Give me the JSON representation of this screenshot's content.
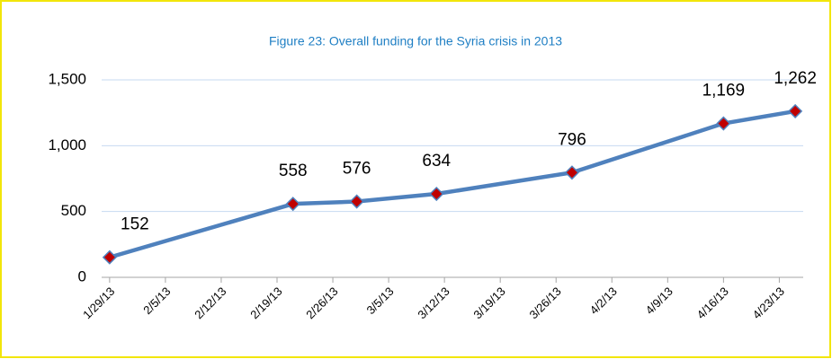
{
  "chart_data": {
    "type": "line",
    "title": "Figure 23: Overall funding for the Syria crisis in 2013",
    "x": [
      "1/29/13",
      "2/21/13",
      "3/1/13",
      "3/11/13",
      "3/28/13",
      "4/16/13",
      "4/25/13"
    ],
    "series": [
      {
        "name": "Overall funding",
        "color": "#4f81bd",
        "marker_color": "#c00000",
        "values": [
          152,
          558,
          576,
          634,
          796,
          1169,
          1262
        ],
        "value_labels": [
          "152",
          "558",
          "576",
          "634",
          "796",
          "1,169",
          "1,262"
        ]
      }
    ],
    "xlim": [
      "1/28/13",
      "4/26/13"
    ],
    "xticks": [
      "1/29/13",
      "2/5/13",
      "2/12/13",
      "2/19/13",
      "2/26/13",
      "3/5/13",
      "3/12/13",
      "3/19/13",
      "3/26/13",
      "4/2/13",
      "4/9/13",
      "4/16/13",
      "4/23/13"
    ],
    "ylim": [
      0,
      1500
    ],
    "yticks": [
      0,
      500,
      {
        "value": 1000,
        "label": "1,000"
      },
      {
        "value": 1500,
        "label": "1,500"
      }
    ],
    "grid": true
  }
}
